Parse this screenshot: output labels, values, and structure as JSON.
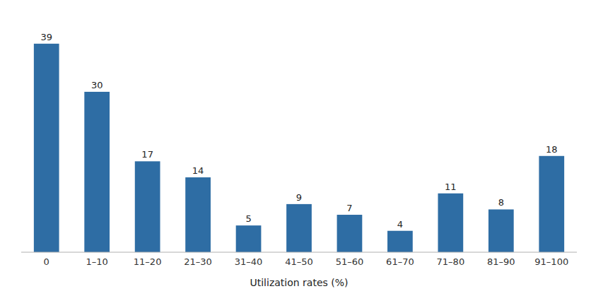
{
  "chart_data": {
    "type": "bar",
    "xlabel": "Utilization rates (%)",
    "categories": [
      "0",
      "1–10",
      "11–20",
      "21–30",
      "31–40",
      "41–50",
      "51–60",
      "61–70",
      "71–80",
      "81–90",
      "91–100"
    ],
    "values": [
      39,
      30,
      17,
      14,
      5,
      9,
      7,
      4,
      11,
      8,
      18
    ],
    "color": "#2E6DA4",
    "ylim": [
      0,
      44
    ],
    "data_labels": true,
    "tick_labels": "x",
    "grid": false
  }
}
